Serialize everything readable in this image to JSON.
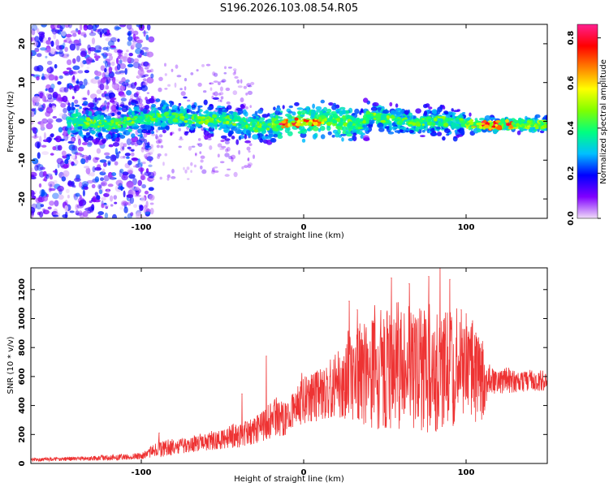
{
  "title": "S196.2026.103.08.54.R05",
  "chart_data": [
    {
      "type": "heatmap",
      "name": "spectrogram",
      "xlabel": "Height of straight line (km)",
      "ylabel": "Frequency (Hz)",
      "xlim": [
        -168,
        150
      ],
      "ylim": [
        -25,
        25
      ],
      "xticks": [
        -100,
        0,
        100
      ],
      "yticks": [
        -20,
        -10,
        0,
        10,
        20
      ],
      "colorbar": {
        "label": "Normalized spectral amplitude",
        "range": [
          0.0,
          0.86
        ],
        "ticks": [
          0.0,
          0.2,
          0.4,
          0.6,
          0.8
        ],
        "tick_labels": [
          "0.0",
          "0.2",
          "0.4",
          "0.6",
          "0.8"
        ],
        "colors": [
          "#f0dcf8",
          "#8000ff",
          "#0000ff",
          "#00c0ff",
          "#00ff80",
          "#80ff00",
          "#ffff00",
          "#ff8000",
          "#ff0000",
          "#ff2090"
        ]
      },
      "ridge": {
        "x": [
          -168,
          -140,
          -120,
          -100,
          -85,
          -70,
          -55,
          -40,
          -30,
          -20,
          -10,
          0,
          10,
          20,
          30,
          35,
          40,
          50,
          60,
          70,
          80,
          90,
          100,
          110,
          120,
          130,
          140,
          150
        ],
        "frequency": [
          0,
          0,
          -1,
          0.5,
          1.5,
          0.5,
          0.5,
          0,
          -1.5,
          -1,
          -0.5,
          -0.3,
          0.2,
          0,
          -0.8,
          -1,
          1.5,
          0.8,
          0.3,
          -0.5,
          0.2,
          0,
          -0.5,
          -1,
          -1,
          -0.8,
          -0.8,
          -0.8
        ]
      }
    },
    {
      "type": "line",
      "name": "snr",
      "xlabel": "Height of straight line (km)",
      "ylabel": "SNR (10 * v/v)",
      "xlim": [
        -168,
        150
      ],
      "ylim": [
        0,
        1350
      ],
      "xticks": [
        -100,
        0,
        100
      ],
      "yticks": [
        0,
        200,
        400,
        600,
        800,
        1000,
        1200
      ],
      "color": "#ee3333",
      "envelope": {
        "x": [
          -168,
          -140,
          -120,
          -100,
          -90,
          -80,
          -60,
          -40,
          -30,
          -20,
          -10,
          0,
          10,
          20,
          30,
          40,
          50,
          60,
          70,
          80,
          90,
          100,
          110,
          115,
          120,
          130,
          140,
          150
        ],
        "low": [
          15,
          18,
          20,
          30,
          40,
          60,
          90,
          110,
          130,
          170,
          200,
          270,
          290,
          320,
          300,
          250,
          220,
          240,
          220,
          210,
          250,
          260,
          300,
          480,
          480,
          490,
          500,
          500
        ],
        "high": [
          35,
          45,
          55,
          70,
          150,
          160,
          200,
          260,
          320,
          420,
          420,
          600,
          650,
          700,
          900,
          1000,
          950,
          1050,
          1000,
          1050,
          1050,
          950,
          850,
          660,
          640,
          640,
          630,
          620
        ]
      },
      "peaks": [
        {
          "x": -89,
          "y": 210
        },
        {
          "x": -38,
          "y": 480
        },
        {
          "x": -23,
          "y": 740
        },
        {
          "x": 28,
          "y": 1120
        },
        {
          "x": 33,
          "y": 1060
        },
        {
          "x": 54,
          "y": 1280
        },
        {
          "x": 65,
          "y": 1240
        },
        {
          "x": 77,
          "y": 1290
        },
        {
          "x": 84,
          "y": 1350
        },
        {
          "x": 90,
          "y": 1270
        },
        {
          "x": 97,
          "y": 1060
        },
        {
          "x": 106,
          "y": 900
        }
      ]
    }
  ]
}
